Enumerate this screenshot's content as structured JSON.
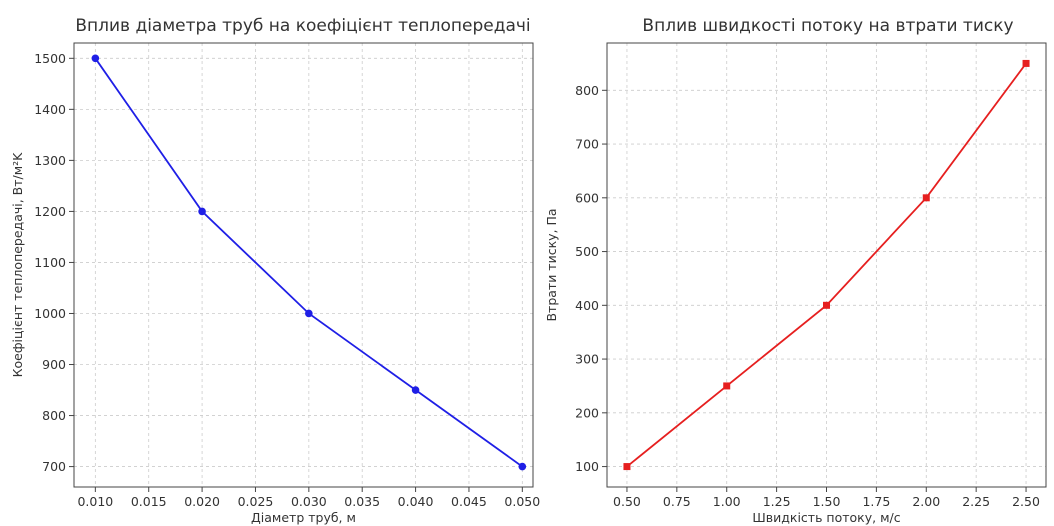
{
  "chart_data": [
    {
      "type": "line",
      "title": "Вплив діаметра труб на коефіцієнт теплопередачі",
      "xlabel": "Діаметр труб, м",
      "ylabel": "Коефіцієнт теплопередачі, Вт/м²K",
      "x": [
        0.01,
        0.02,
        0.03,
        0.04,
        0.05
      ],
      "series": [
        {
          "values": [
            1500,
            1200,
            1000,
            850,
            700
          ],
          "color": "#1f1fe6",
          "marker": "circle"
        }
      ],
      "xlim": [
        0.008,
        0.051
      ],
      "ylim": [
        660,
        1530
      ],
      "xticks": [
        0.01,
        0.015,
        0.02,
        0.025,
        0.03,
        0.035,
        0.04,
        0.045,
        0.05
      ],
      "xtick_labels": [
        "0.010",
        "0.015",
        "0.020",
        "0.025",
        "0.030",
        "0.035",
        "0.040",
        "0.045",
        "0.050"
      ],
      "yticks": [
        700,
        800,
        900,
        1000,
        1100,
        1200,
        1300,
        1400,
        1500
      ],
      "ytick_labels": [
        "700",
        "800",
        "900",
        "1000",
        "1100",
        "1200",
        "1300",
        "1400",
        "1500"
      ],
      "grid": true
    },
    {
      "type": "line",
      "title": "Вплив швидкості потоку на втрати тиску",
      "xlabel": "Швидкість потоку, м/с",
      "ylabel": "Втрати тиску, Па",
      "x": [
        0.5,
        1.0,
        1.5,
        2.0,
        2.5
      ],
      "series": [
        {
          "values": [
            100,
            250,
            400,
            600,
            850
          ],
          "color": "#e61f1f",
          "marker": "square"
        }
      ],
      "xlim": [
        0.4,
        2.6
      ],
      "ylim": [
        62,
        888
      ],
      "xticks": [
        0.5,
        0.75,
        1.0,
        1.25,
        1.5,
        1.75,
        2.0,
        2.25,
        2.5
      ],
      "xtick_labels": [
        "0.50",
        "0.75",
        "1.00",
        "1.25",
        "1.50",
        "1.75",
        "2.00",
        "2.25",
        "2.50"
      ],
      "yticks": [
        100,
        200,
        300,
        400,
        500,
        600,
        700,
        800
      ],
      "ytick_labels": [
        "100",
        "200",
        "300",
        "400",
        "500",
        "600",
        "700",
        "800"
      ],
      "grid": true
    }
  ]
}
